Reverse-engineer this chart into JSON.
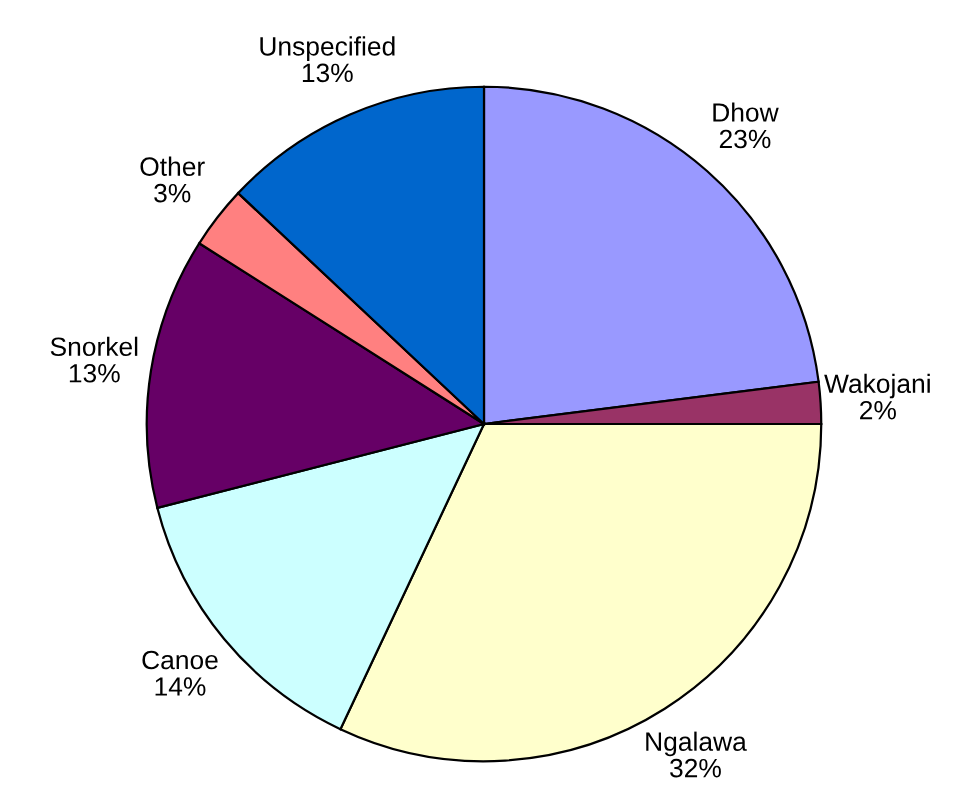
{
  "chart_data": {
    "type": "pie",
    "categories": [
      "Dhow",
      "Wakojani",
      "Ngalawa",
      "Canoe",
      "Snorkel",
      "Other",
      "Unspecified"
    ],
    "values": [
      23,
      2,
      32,
      14,
      13,
      3,
      13
    ],
    "value_labels": [
      "23%",
      "2%",
      "32%",
      "14%",
      "13%",
      "3%",
      "13%"
    ],
    "colors": [
      "#9999ff",
      "#993366",
      "#ffffcc",
      "#ccffff",
      "#660066",
      "#ff8080",
      "#0066cc"
    ]
  }
}
